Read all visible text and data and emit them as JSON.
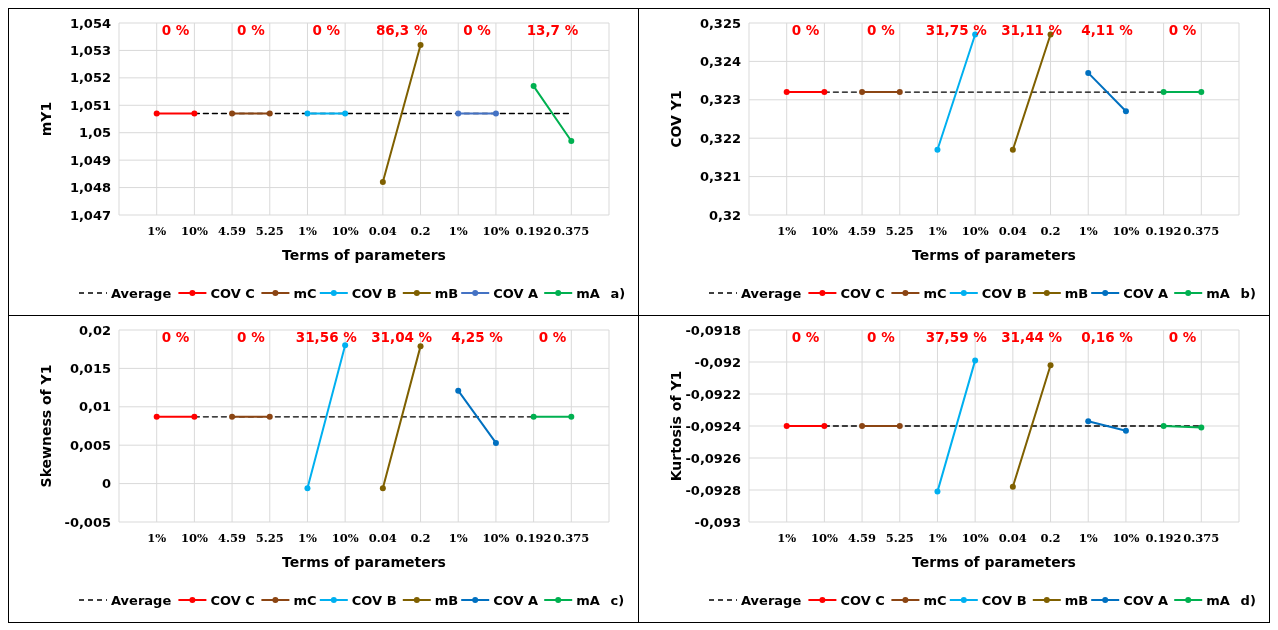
{
  "chart_data": [
    {
      "type": "line",
      "xlabel": "Terms of parameters",
      "ylabel": "mY1",
      "categories": [
        null,
        "1%",
        "10%",
        "4.59",
        "5.25",
        "1%",
        "10%",
        "0.04",
        "0.2",
        "1%",
        "10%",
        "0.192",
        "0.375",
        null
      ],
      "ylim": [
        1.047,
        1.054
      ],
      "yticks": [
        {
          "value": 1.047,
          "label": "1,047"
        },
        {
          "value": 1.048,
          "label": "1,048"
        },
        {
          "value": 1.049,
          "label": "1,049"
        },
        {
          "value": 1.05,
          "label": "1,05"
        },
        {
          "value": 1.051,
          "label": "1,051"
        },
        {
          "value": 1.052,
          "label": "1,052"
        },
        {
          "value": 1.053,
          "label": "1,053"
        },
        {
          "value": 1.054,
          "label": "1,054"
        }
      ],
      "grid": true,
      "legend": "bottom",
      "marker": "circle",
      "annotations": [
        "0 %",
        "0 %",
        "0 %",
        "86,3 %",
        "0 %",
        "13,7 %",
        "a)"
      ],
      "series": [
        {
          "name": "Average",
          "color": "#000000",
          "line_style": "dashed",
          "marker": "none",
          "values": [
            null,
            null,
            1.0507,
            1.0507,
            1.0507,
            1.0507,
            1.0507,
            1.0507,
            1.0507,
            1.0507,
            1.0507,
            1.0507,
            1.0507,
            null
          ]
        },
        {
          "name": "COV C",
          "color": "#ff0000",
          "values": [
            null,
            1.0507,
            1.0507,
            null,
            null,
            null,
            null,
            null,
            null,
            null,
            null,
            null,
            null,
            null
          ]
        },
        {
          "name": "mC",
          "color": "#8b4513",
          "values": [
            null,
            null,
            null,
            1.0507,
            1.0507,
            null,
            null,
            null,
            null,
            null,
            null,
            null,
            null,
            null
          ]
        },
        {
          "name": "COV B",
          "color": "#00b0f0",
          "values": [
            null,
            null,
            null,
            null,
            null,
            1.0507,
            1.0507,
            null,
            null,
            null,
            null,
            null,
            null,
            null
          ]
        },
        {
          "name": "mB",
          "color": "#7f6000",
          "values": [
            null,
            null,
            null,
            null,
            null,
            null,
            null,
            1.0482,
            1.0532,
            null,
            null,
            null,
            null,
            null
          ]
        },
        {
          "name": "COV A",
          "color": "#4472c4",
          "values": [
            null,
            null,
            null,
            null,
            null,
            null,
            null,
            null,
            null,
            1.0507,
            1.0507,
            null,
            null,
            null
          ]
        },
        {
          "name": "mA",
          "color": "#00b050",
          "values": [
            null,
            null,
            null,
            null,
            null,
            null,
            null,
            null,
            null,
            null,
            null,
            1.0517,
            1.0497,
            null
          ]
        }
      ]
    },
    {
      "type": "line",
      "xlabel": "Terms of parameters",
      "ylabel": "COV Y1",
      "categories": [
        null,
        "1%",
        "10%",
        "4.59",
        "5.25",
        "1%",
        "10%",
        "0.04",
        "0.2",
        "1%",
        "10%",
        "0.192",
        "0.375",
        null
      ],
      "ylim": [
        0.32,
        0.325
      ],
      "yticks": [
        {
          "value": 0.32,
          "label": "0,32"
        },
        {
          "value": 0.321,
          "label": "0,321"
        },
        {
          "value": 0.322,
          "label": "0,322"
        },
        {
          "value": 0.323,
          "label": "0,323"
        },
        {
          "value": 0.324,
          "label": "0,324"
        },
        {
          "value": 0.325,
          "label": "0,325"
        }
      ],
      "grid": true,
      "legend": "bottom",
      "marker": "circle",
      "annotations": [
        "0 %",
        "0 %",
        "31,75 %",
        "31,11 %",
        "4,11 %",
        "0 %",
        "b)"
      ],
      "series": [
        {
          "name": "Average",
          "color": "#000000",
          "line_style": "dashed",
          "marker": "none",
          "values": [
            null,
            null,
            0.3232,
            0.3232,
            0.3232,
            0.3232,
            0.3232,
            0.3232,
            0.3232,
            0.3232,
            0.3232,
            0.3232,
            null,
            null
          ]
        },
        {
          "name": "COV C",
          "color": "#ff0000",
          "values": [
            null,
            0.3232,
            0.3232,
            null,
            null,
            null,
            null,
            null,
            null,
            null,
            null,
            null,
            null,
            null
          ]
        },
        {
          "name": "mC",
          "color": "#8b4513",
          "values": [
            null,
            null,
            null,
            0.3232,
            0.3232,
            null,
            null,
            null,
            null,
            null,
            null,
            null,
            null,
            null
          ]
        },
        {
          "name": "COV B",
          "color": "#00b0f0",
          "values": [
            null,
            null,
            null,
            null,
            null,
            0.3217,
            0.3247,
            null,
            null,
            null,
            null,
            null,
            null,
            null
          ]
        },
        {
          "name": "mB",
          "color": "#7f6000",
          "values": [
            null,
            null,
            null,
            null,
            null,
            null,
            null,
            0.3217,
            0.3247,
            null,
            null,
            null,
            null,
            null
          ]
        },
        {
          "name": "COV A",
          "color": "#0070c0",
          "values": [
            null,
            null,
            null,
            null,
            null,
            null,
            null,
            null,
            null,
            0.3237,
            0.3227,
            null,
            null,
            null
          ]
        },
        {
          "name": "mA",
          "color": "#00b050",
          "values": [
            null,
            null,
            null,
            null,
            null,
            null,
            null,
            null,
            null,
            null,
            null,
            0.3232,
            0.3232,
            null
          ]
        }
      ]
    },
    {
      "type": "line",
      "xlabel": "Terms of parameters",
      "ylabel": "Skewness of Y1",
      "categories": [
        null,
        "1%",
        "10%",
        "4.59",
        "5.25",
        "1%",
        "10%",
        "0.04",
        "0.2",
        "1%",
        "10%",
        "0.192",
        "0.375",
        null
      ],
      "ylim": [
        -0.005,
        0.02
      ],
      "yticks": [
        {
          "value": -0.005,
          "label": "-0,005"
        },
        0,
        {
          "value": 0.005,
          "label": "0,005"
        },
        {
          "value": 0.01,
          "label": "0,01"
        },
        {
          "value": 0.015,
          "label": "0,015"
        },
        {
          "value": 0.02,
          "label": "0,02"
        }
      ],
      "grid": true,
      "legend": "bottom",
      "marker": "circle",
      "annotations": [
        "0 %",
        "0 %",
        "31,56 %",
        "31,04 %",
        "4,25 %",
        "0 %",
        "c)"
      ],
      "series": [
        {
          "name": "Average",
          "color": "#000000",
          "line_style": "dashed",
          "marker": "none",
          "values": [
            null,
            null,
            0.0087,
            0.0087,
            0.0087,
            0.0087,
            0.0087,
            0.0087,
            0.0087,
            0.0087,
            0.0087,
            0.0087,
            null,
            null
          ]
        },
        {
          "name": "COV C",
          "color": "#ff0000",
          "values": [
            null,
            0.0087,
            0.0087,
            null,
            null,
            null,
            null,
            null,
            null,
            null,
            null,
            null,
            null,
            null
          ]
        },
        {
          "name": "mC",
          "color": "#8b4513",
          "values": [
            null,
            null,
            null,
            0.0087,
            0.0087,
            null,
            null,
            null,
            null,
            null,
            null,
            null,
            null,
            null
          ]
        },
        {
          "name": "COV B",
          "color": "#00b0f0",
          "values": [
            null,
            null,
            null,
            null,
            null,
            -0.0006,
            0.018,
            null,
            null,
            null,
            null,
            null,
            null,
            null
          ]
        },
        {
          "name": "mB",
          "color": "#7f6000",
          "values": [
            null,
            null,
            null,
            null,
            null,
            null,
            null,
            -0.0006,
            0.0179,
            null,
            null,
            null,
            null,
            null
          ]
        },
        {
          "name": "COV A",
          "color": "#0070c0",
          "values": [
            null,
            null,
            null,
            null,
            null,
            null,
            null,
            null,
            null,
            0.0121,
            0.0053,
            null,
            null,
            null
          ]
        },
        {
          "name": "mA",
          "color": "#00b050",
          "values": [
            null,
            null,
            null,
            null,
            null,
            null,
            null,
            null,
            null,
            null,
            null,
            0.0087,
            0.0087,
            null
          ]
        }
      ]
    },
    {
      "type": "line",
      "xlabel": "Terms of parameters",
      "ylabel": "Kurtosis of Y1",
      "categories": [
        null,
        "1%",
        "10%",
        "4.59",
        "5.25",
        "1%",
        "10%",
        "0.04",
        "0.2",
        "1%",
        "10%",
        "0.192",
        "0.375",
        null
      ],
      "ylim": [
        -0.093,
        -0.0918
      ],
      "yticks": [
        {
          "value": -0.093,
          "label": "-0,093"
        },
        {
          "value": -0.0928,
          "label": "-0,0928"
        },
        {
          "value": -0.0926,
          "label": "-0,0926"
        },
        {
          "value": -0.0924,
          "label": "-0,0924"
        },
        {
          "value": -0.0922,
          "label": "-0,0922"
        },
        {
          "value": -0.092,
          "label": "-0,092"
        },
        {
          "value": -0.0918,
          "label": "-0,0918"
        }
      ],
      "grid": true,
      "legend": "bottom",
      "marker": "circle",
      "annotations": [
        "0 %",
        "0 %",
        "37,59 %",
        "31,44 %",
        "0,16 %",
        "0 %",
        "d)"
      ],
      "series": [
        {
          "name": "Average",
          "color": "#000000",
          "line_style": "dashed",
          "marker": "none",
          "values": [
            null,
            null,
            -0.0924,
            -0.0924,
            -0.0924,
            -0.0924,
            -0.0924,
            -0.0924,
            -0.0924,
            -0.0924,
            -0.0924,
            -0.0924,
            -0.0924,
            null
          ]
        },
        {
          "name": "COV C",
          "color": "#ff0000",
          "values": [
            null,
            -0.0924,
            -0.0924,
            null,
            null,
            null,
            null,
            null,
            null,
            null,
            null,
            null,
            null,
            null
          ]
        },
        {
          "name": "mC",
          "color": "#8b4513",
          "values": [
            null,
            null,
            null,
            -0.0924,
            -0.0924,
            null,
            null,
            null,
            null,
            null,
            null,
            null,
            null,
            null
          ]
        },
        {
          "name": "COV B",
          "color": "#00b0f0",
          "values": [
            null,
            null,
            null,
            null,
            null,
            -0.09281,
            -0.09199,
            null,
            null,
            null,
            null,
            null,
            null,
            null
          ]
        },
        {
          "name": "mB",
          "color": "#7f6000",
          "values": [
            null,
            null,
            null,
            null,
            null,
            null,
            null,
            -0.09278,
            -0.09202,
            null,
            null,
            null,
            null,
            null
          ]
        },
        {
          "name": "COV A",
          "color": "#0070c0",
          "values": [
            null,
            null,
            null,
            null,
            null,
            null,
            null,
            null,
            null,
            -0.09237,
            -0.09243,
            null,
            null,
            null
          ]
        },
        {
          "name": "mA",
          "color": "#00b050",
          "values": [
            null,
            null,
            null,
            null,
            null,
            null,
            null,
            null,
            null,
            null,
            null,
            -0.0924,
            -0.09241,
            null
          ]
        }
      ]
    }
  ]
}
